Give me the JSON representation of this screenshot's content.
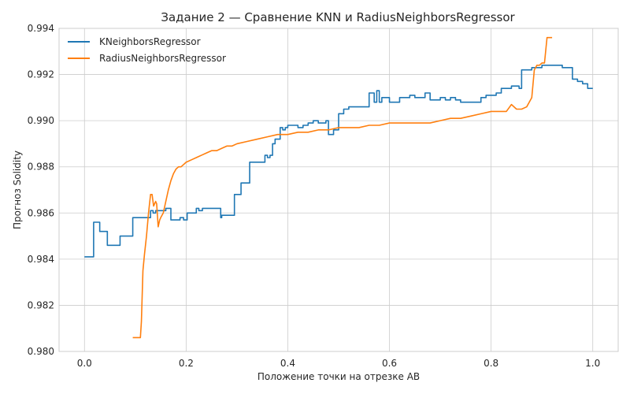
{
  "chart_data": {
    "type": "line",
    "title": "Задание 2 — Сравнение KNN и RadiusNeighborsRegressor",
    "xlabel": "Положение точки на отрезке AB",
    "ylabel": "Прогноз Solidity",
    "xlim": [
      -0.05,
      1.05
    ],
    "ylim": [
      0.98,
      0.994
    ],
    "xticks": [
      0.0,
      0.2,
      0.4,
      0.6,
      0.8,
      1.0
    ],
    "xtick_labels": [
      "0.0",
      "0.2",
      "0.4",
      "0.6",
      "0.8",
      "1.0"
    ],
    "yticks": [
      0.98,
      0.982,
      0.984,
      0.986,
      0.988,
      0.99,
      0.992,
      0.994
    ],
    "ytick_labels": [
      "0.980",
      "0.982",
      "0.984",
      "0.986",
      "0.988",
      "0.990",
      "0.992",
      "0.994"
    ],
    "grid": true,
    "legend": "upper left",
    "series": [
      {
        "name": "KNeighborsRegressor",
        "color": "#1f77b4",
        "step": true,
        "x": [
          0.0,
          0.018,
          0.025,
          0.03,
          0.045,
          0.06,
          0.07,
          0.08,
          0.095,
          0.11,
          0.13,
          0.135,
          0.14,
          0.16,
          0.17,
          0.188,
          0.195,
          0.202,
          0.22,
          0.225,
          0.232,
          0.268,
          0.27,
          0.29,
          0.295,
          0.3,
          0.308,
          0.32,
          0.325,
          0.33,
          0.335,
          0.34,
          0.345,
          0.35,
          0.355,
          0.36,
          0.365,
          0.37,
          0.375,
          0.385,
          0.39,
          0.395,
          0.4,
          0.42,
          0.43,
          0.44,
          0.45,
          0.46,
          0.47,
          0.475,
          0.48,
          0.49,
          0.5,
          0.51,
          0.52,
          0.525,
          0.53,
          0.54,
          0.55,
          0.56,
          0.57,
          0.575,
          0.58,
          0.585,
          0.6,
          0.61,
          0.62,
          0.63,
          0.64,
          0.65,
          0.66,
          0.67,
          0.68,
          0.69,
          0.7,
          0.71,
          0.72,
          0.73,
          0.74,
          0.75,
          0.76,
          0.77,
          0.78,
          0.79,
          0.8,
          0.81,
          0.82,
          0.83,
          0.84,
          0.85,
          0.855,
          0.86,
          0.87,
          0.88,
          0.89,
          0.9,
          0.91,
          0.92,
          0.93,
          0.94,
          0.95,
          0.96,
          0.97,
          0.98,
          0.99,
          1.0
        ],
        "y": [
          0.9841,
          0.9856,
          0.9856,
          0.9852,
          0.9846,
          0.9846,
          0.985,
          0.985,
          0.9858,
          0.9858,
          0.9861,
          0.986,
          0.9861,
          0.9862,
          0.9857,
          0.9858,
          0.9857,
          0.986,
          0.9862,
          0.9861,
          0.9862,
          0.9858,
          0.9859,
          0.9859,
          0.9868,
          0.9868,
          0.9873,
          0.9873,
          0.9882,
          0.9882,
          0.9882,
          0.9882,
          0.9882,
          0.9882,
          0.9885,
          0.9884,
          0.9885,
          0.989,
          0.9892,
          0.9897,
          0.9896,
          0.9897,
          0.9898,
          0.9897,
          0.9898,
          0.9899,
          0.99,
          0.9899,
          0.9899,
          0.99,
          0.9894,
          0.9896,
          0.9903,
          0.9905,
          0.9906,
          0.9906,
          0.9906,
          0.9906,
          0.9906,
          0.9912,
          0.9908,
          0.9913,
          0.9908,
          0.991,
          0.9908,
          0.9908,
          0.991,
          0.991,
          0.9911,
          0.991,
          0.991,
          0.9912,
          0.9909,
          0.9909,
          0.991,
          0.9909,
          0.991,
          0.9909,
          0.9908,
          0.9908,
          0.9908,
          0.9908,
          0.991,
          0.9911,
          0.9911,
          0.9912,
          0.9914,
          0.9914,
          0.9915,
          0.9915,
          0.9914,
          0.9922,
          0.9922,
          0.9923,
          0.9923,
          0.9924,
          0.9924,
          0.9924,
          0.9924,
          0.9923,
          0.9923,
          0.9918,
          0.9917,
          0.9916,
          0.9914,
          0.9914
        ]
      },
      {
        "name": "RadiusNeighborsRegressor",
        "color": "#ff7f0e",
        "step": false,
        "x": [
          0.095,
          0.11,
          0.112,
          0.115,
          0.118,
          0.122,
          0.126,
          0.13,
          0.133,
          0.136,
          0.14,
          0.142,
          0.145,
          0.148,
          0.15,
          0.155,
          0.16,
          0.165,
          0.17,
          0.175,
          0.18,
          0.185,
          0.19,
          0.195,
          0.2,
          0.21,
          0.22,
          0.23,
          0.24,
          0.25,
          0.26,
          0.27,
          0.28,
          0.29,
          0.3,
          0.32,
          0.34,
          0.36,
          0.38,
          0.4,
          0.42,
          0.44,
          0.46,
          0.48,
          0.5,
          0.52,
          0.54,
          0.56,
          0.58,
          0.6,
          0.62,
          0.64,
          0.66,
          0.68,
          0.7,
          0.72,
          0.74,
          0.76,
          0.78,
          0.8,
          0.82,
          0.83,
          0.84,
          0.85,
          0.86,
          0.87,
          0.88,
          0.885,
          0.89,
          0.895,
          0.9,
          0.905,
          0.91,
          0.92
        ],
        "y": [
          0.9806,
          0.9806,
          0.9813,
          0.9835,
          0.9842,
          0.985,
          0.986,
          0.9868,
          0.9868,
          0.9863,
          0.9865,
          0.9864,
          0.9854,
          0.9857,
          0.9858,
          0.986,
          0.9865,
          0.987,
          0.9874,
          0.9877,
          0.9879,
          0.988,
          0.988,
          0.9881,
          0.9882,
          0.9883,
          0.9884,
          0.9885,
          0.9886,
          0.9887,
          0.9887,
          0.9888,
          0.9889,
          0.9889,
          0.989,
          0.9891,
          0.9892,
          0.9893,
          0.9894,
          0.9894,
          0.9895,
          0.9895,
          0.9896,
          0.9896,
          0.9897,
          0.9897,
          0.9897,
          0.9898,
          0.9898,
          0.9899,
          0.9899,
          0.9899,
          0.9899,
          0.9899,
          0.99,
          0.9901,
          0.9901,
          0.9902,
          0.9903,
          0.9904,
          0.9904,
          0.9904,
          0.9907,
          0.9905,
          0.9905,
          0.9906,
          0.991,
          0.9922,
          0.9924,
          0.9924,
          0.9925,
          0.9925,
          0.9936,
          0.9936
        ]
      }
    ]
  }
}
